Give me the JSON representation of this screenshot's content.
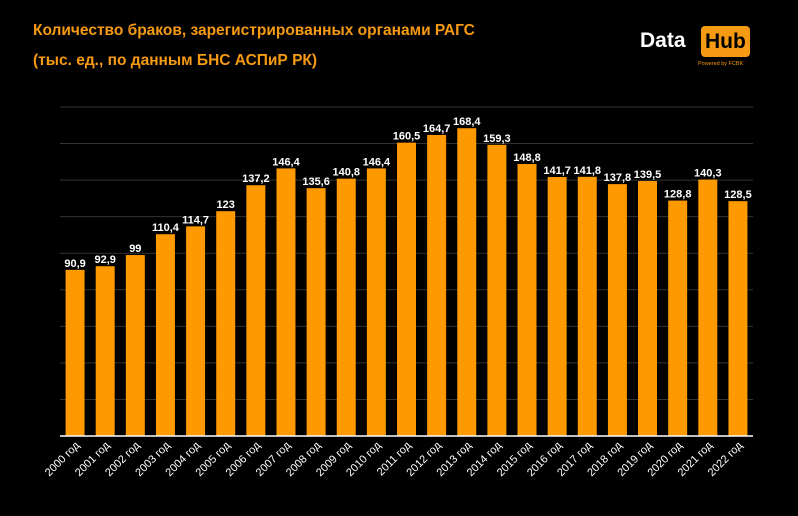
{
  "header": {
    "title_line1": "Количество браков, зарегистрированных органами РАГС",
    "title_line2": "(тыс. ед., по данным БНС АСПиР РК)"
  },
  "logo": {
    "data_text": "Data",
    "hub_text": "Hub",
    "powered_text": "Powered by FCBK"
  },
  "colors": {
    "background": "#000000",
    "bar": "#ff9900",
    "title": "#f59a12",
    "text": "#ffffff",
    "grid": "#333333"
  },
  "chart_data": {
    "type": "bar",
    "categories": [
      "2000 год",
      "2001 год",
      "2002 год",
      "2003 год",
      "2004 год",
      "2005 год",
      "2006 год",
      "2007 год",
      "2008 год",
      "2009 год",
      "2010 год",
      "2011 год",
      "2012 год",
      "2013 год",
      "2014 год",
      "2015 год",
      "2016 год",
      "2017 год",
      "2018 год",
      "2019 год",
      "2020 год",
      "2021 год",
      "2022 год"
    ],
    "values": [
      90.9,
      92.9,
      99,
      110.4,
      114.7,
      123,
      137.2,
      146.4,
      135.6,
      140.8,
      146.4,
      160.5,
      164.7,
      168.4,
      159.3,
      148.8,
      141.7,
      141.8,
      137.8,
      139.5,
      128.8,
      140.3,
      128.5
    ],
    "value_labels": [
      "90,9",
      "92,9",
      "99",
      "110,4",
      "114,7",
      "123",
      "137,2",
      "146,4",
      "135,6",
      "140,8",
      "146,4",
      "160,5",
      "164,7",
      "168,4",
      "159,3",
      "148,8",
      "141,7",
      "141,8",
      "137,8",
      "139,5",
      "128,8",
      "140,3",
      "128,5"
    ],
    "title": "Количество браков, зарегистрированных органами РАГС",
    "subtitle": "(тыс. ед., по данным БНС АСПиР РК)",
    "xlabel": "",
    "ylabel": "",
    "ylim": [
      0,
      180
    ],
    "y_gridline_step": 20,
    "y_tick_labels_shown": false,
    "grid": true,
    "legend": "none"
  }
}
